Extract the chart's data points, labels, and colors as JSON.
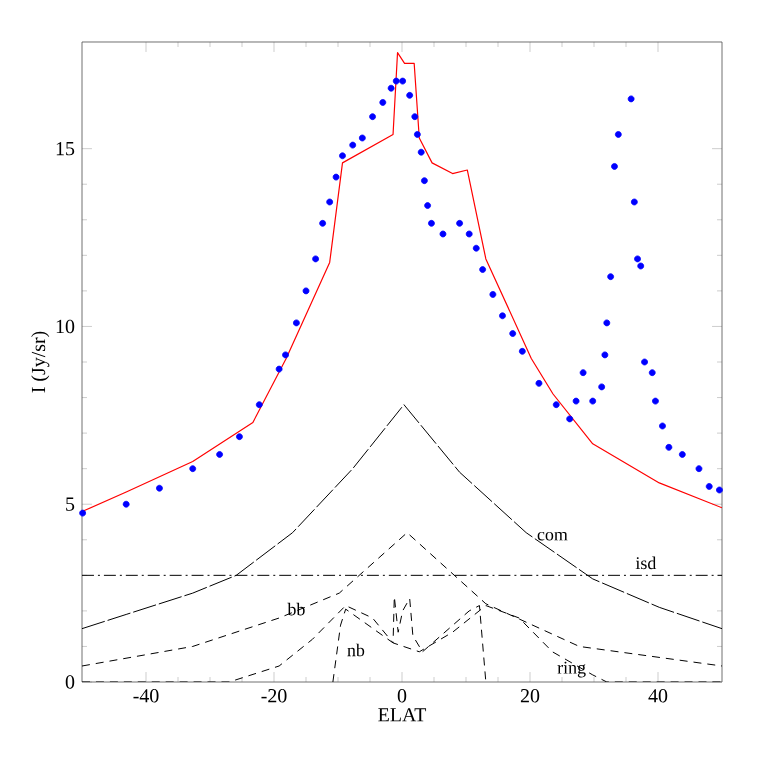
{
  "chart_data": {
    "type": "line",
    "xlabel": "ELAT",
    "ylabel": "I (Jy/sr)",
    "xlim": [
      -50,
      50
    ],
    "ylim": [
      0,
      18
    ],
    "xticks": [
      -40,
      -20,
      0,
      20,
      40
    ],
    "yticks": [
      0,
      5,
      10,
      15
    ],
    "series": [
      {
        "type": "scatter",
        "color": "#0000ff",
        "marker": "circle",
        "x": [
          -49.9,
          -43.1,
          -37.9,
          -32.7,
          -28.5,
          -25.4,
          -22.3,
          -19.2,
          -18.2,
          -16.5,
          -15,
          -13.5,
          -12.4,
          -11.3,
          -10.3,
          -9.3,
          -7.7,
          -6.2,
          -4.6,
          -3,
          -1.7,
          -0.9,
          0.1,
          1.2,
          2,
          2.4,
          3,
          3.5,
          4,
          4.6,
          6.4,
          9,
          10.5,
          11.6,
          12.6,
          14.2,
          15.7,
          17.3,
          18.8,
          21.4,
          24.1,
          26.2,
          27.2,
          28.3,
          29.8,
          31.2,
          31.7,
          32,
          32.6,
          33.2,
          33.8,
          35.8,
          36.3,
          36.8,
          37.3,
          37.9,
          39.1,
          39.6,
          40.7,
          41.7,
          43.8,
          46.4,
          48,
          49.6
        ],
        "values": [
          4.75,
          5.0,
          5.45,
          6.0,
          6.4,
          6.9,
          7.8,
          8.8,
          9.2,
          10.1,
          11.0,
          11.9,
          12.9,
          13.5,
          14.2,
          14.8,
          15.1,
          15.3,
          15.9,
          16.3,
          16.7,
          16.9,
          16.9,
          16.5,
          15.9,
          15.4,
          14.9,
          14.1,
          13.4,
          12.9,
          12.6,
          12.9,
          12.6,
          12.2,
          11.6,
          10.9,
          10.3,
          9.8,
          9.3,
          8.4,
          7.8,
          7.4,
          7.9,
          8.7,
          7.9,
          8.3,
          9.2,
          10.1,
          11.4,
          14.5,
          15.4,
          16.4,
          13.5,
          11.9,
          11.7,
          9.0,
          8.7,
          7.9,
          7.2,
          6.6,
          6.4,
          6.0,
          5.5,
          5.4
        ]
      },
      {
        "type": "line",
        "color": "#ff0000",
        "line_style": "solid",
        "x": [
          -49.9,
          -43,
          -32.7,
          -23.3,
          -18.1,
          -11.3,
          -9.3,
          -1.4,
          -0.7,
          0.4,
          1.9,
          2.7,
          4.7,
          7.9,
          10.2,
          13.1,
          20.2,
          23.6,
          29.8,
          40.2,
          50
        ],
        "values": [
          4.8,
          5.35,
          6.2,
          7.3,
          9.1,
          11.8,
          14.6,
          15.4,
          17.7,
          17.4,
          17.4,
          15.3,
          14.6,
          14.3,
          14.4,
          11.9,
          9.1,
          8.1,
          6.7,
          5.6,
          4.9
        ]
      },
      {
        "type": "line",
        "name": "com",
        "color": "#000000",
        "line_style": "longdash",
        "x": [
          -50,
          -43.1,
          -32.7,
          -25.9,
          -17.1,
          -7.7,
          0.3,
          9,
          19.4,
          29.8,
          40.2,
          50
        ],
        "values": [
          1.5,
          1.9,
          2.5,
          3.0,
          4.2,
          6.0,
          7.8,
          5.9,
          4.2,
          2.9,
          2.1,
          1.5
        ]
      },
      {
        "type": "line",
        "name": "isd",
        "color": "#000000",
        "line_style": "dashdot",
        "x": [
          -50,
          50
        ],
        "values": [
          3.0,
          3.0
        ]
      },
      {
        "type": "line",
        "name": "bb",
        "color": "#000000",
        "line_style": "dashed",
        "x": [
          -50,
          -32.7,
          -19.2,
          -9.8,
          0.8,
          13.1,
          27.7,
          50
        ],
        "values": [
          0.45,
          1.0,
          1.8,
          2.5,
          4.2,
          2.2,
          1.0,
          0.45
        ]
      },
      {
        "type": "line",
        "name": "ring",
        "color": "#000000",
        "line_style": "dashed",
        "x": [
          -50,
          -27,
          -19.2,
          -14,
          -8.8,
          -4.6,
          -1.4,
          2.7,
          7.9,
          13.1,
          18.3,
          23.5,
          29.8,
          32,
          50
        ],
        "values": [
          0,
          0,
          0.45,
          1.2,
          2.15,
          1.8,
          1.1,
          0.85,
          1.4,
          2.15,
          1.8,
          0.85,
          0.2,
          0,
          0
        ]
      },
      {
        "type": "line",
        "name": "nb",
        "color": "#000000",
        "line_style": "dashed",
        "x": [
          -10.8,
          -9.6,
          -8.8,
          -1.4,
          -1.2,
          -0.6,
          0.1,
          1.2,
          1.7,
          3.2,
          10.5,
          12.1,
          13.1
        ],
        "values": [
          0,
          1.6,
          2.05,
          1.1,
          2.4,
          1.4,
          2.0,
          2.35,
          1.3,
          0.85,
          2.0,
          2.15,
          0
        ]
      }
    ]
  }
}
